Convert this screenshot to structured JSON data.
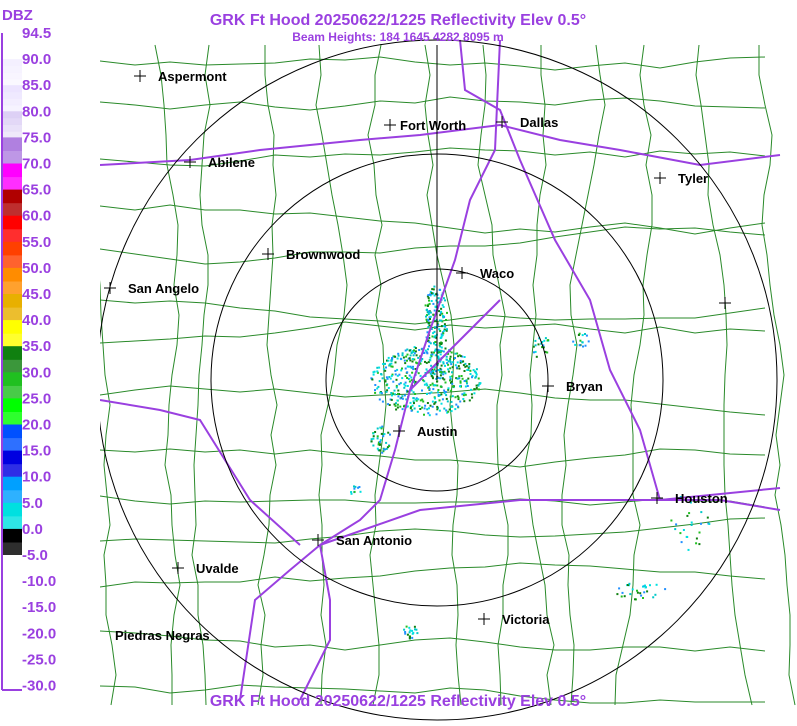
{
  "header": {
    "title": "GRK Ft Hood 20250622/1225 Reflectivity Elev 0.5°",
    "subtitle": "Beam Heights: 184 1645 4282 8095 m"
  },
  "footer": {
    "title": "GRK Ft Hood 20250622/1225 Reflectivity Elev 0.5°"
  },
  "legend": {
    "unit": "DBZ",
    "labels": [
      "94.5",
      "90.0",
      "85.0",
      "80.0",
      "75.0",
      "70.0",
      "65.0",
      "60.0",
      "55.0",
      "50.0",
      "45.0",
      "40.0",
      "35.0",
      "30.0",
      "25.0",
      "20.0",
      "15.0",
      "10.0",
      "5.0",
      "0.0",
      "-5.0",
      "-10.0",
      "-15.0",
      "-20.0",
      "-25.0",
      "-30.0"
    ],
    "colors": [
      "#ffffff",
      "#f4f0ff",
      "#ece4ff",
      "#ddd0f5",
      "#b080e0",
      "#ff00ff",
      "#b00000",
      "#ff0000",
      "#ff4000",
      "#ff8c00",
      "#e8b000",
      "#ffff00",
      "#108010",
      "#20c020",
      "#00ff00",
      "#0050ff",
      "#0000e0",
      "#00a0ff",
      "#00e0e0",
      "#000000",
      "#ffffff",
      "#ffffff",
      "#ffffff",
      "#ffffff",
      "#ffffff"
    ]
  },
  "cities": [
    {
      "label": "Aspermont"
    },
    {
      "label": "Fort Worth"
    },
    {
      "label": "Dallas"
    },
    {
      "label": "Abilene"
    },
    {
      "label": "Tyler"
    },
    {
      "label": "Brownwood"
    },
    {
      "label": "Waco"
    },
    {
      "label": "San Angelo"
    },
    {
      "label": "Bryan"
    },
    {
      "label": "Austin"
    },
    {
      "label": "Houston"
    },
    {
      "label": "San Antonio"
    },
    {
      "label": "Uvalde"
    },
    {
      "label": "Victoria"
    },
    {
      "label": "Piedras Negras"
    }
  ]
}
